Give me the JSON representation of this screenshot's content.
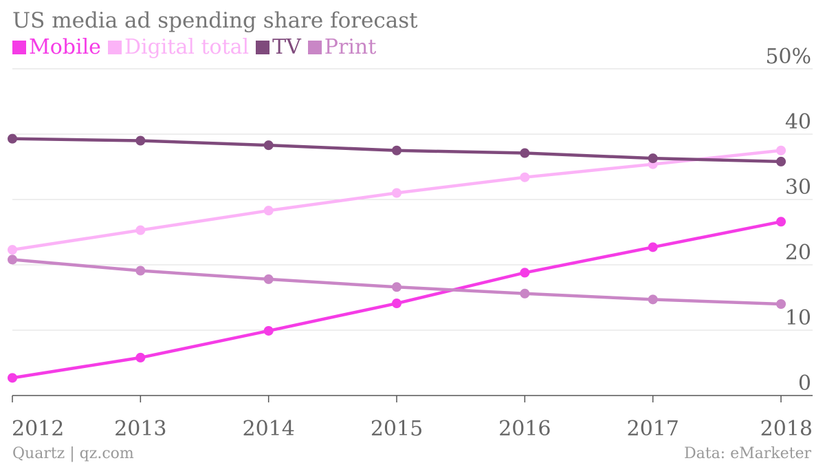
{
  "chart_data": {
    "type": "line",
    "title": "US media ad spending share forecast",
    "x": [
      "2012",
      "2013",
      "2014",
      "2015",
      "2016",
      "2017",
      "2018"
    ],
    "series": [
      {
        "name": "Mobile",
        "color": "#f53ce6",
        "values": [
          2.7,
          5.8,
          9.9,
          14.1,
          18.8,
          22.7,
          26.6
        ]
      },
      {
        "name": "Digital total",
        "color": "#fbb3f7",
        "values": [
          22.3,
          25.3,
          28.3,
          31.0,
          33.4,
          35.4,
          37.5
        ]
      },
      {
        "name": "TV",
        "color": "#7f4a7c",
        "values": [
          39.3,
          39.0,
          38.3,
          37.5,
          37.1,
          36.3,
          35.8
        ]
      },
      {
        "name": "Print",
        "color": "#c986c6",
        "values": [
          20.8,
          19.1,
          17.8,
          16.6,
          15.6,
          14.7,
          14.0
        ]
      }
    ],
    "ylim": [
      0,
      50
    ],
    "yticks": [
      0,
      10,
      20,
      30,
      40,
      50
    ],
    "ytick_labels": [
      "0",
      "10",
      "20",
      "30",
      "40",
      "50%"
    ],
    "grid": true,
    "legend_position": "top-left"
  },
  "footer": {
    "source_left": "Quartz | qz.com",
    "source_right": "Data: eMarketer"
  }
}
